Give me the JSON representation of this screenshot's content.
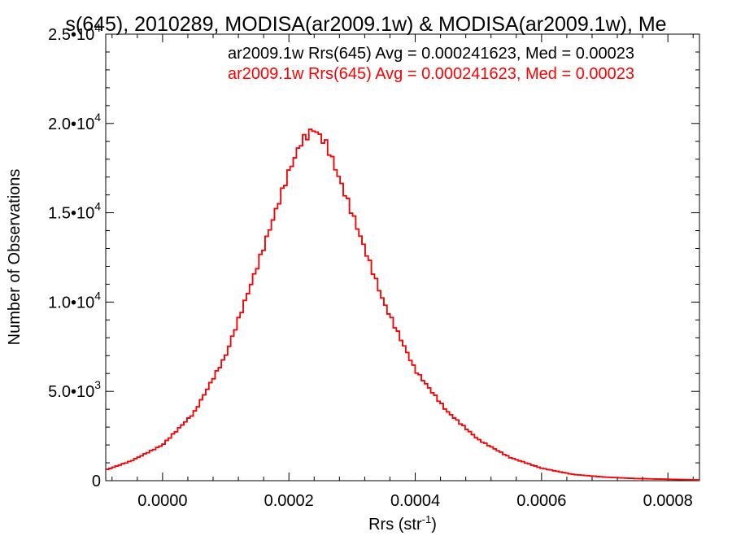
{
  "chart_data": {
    "type": "line",
    "title": "s(645), 2010289, MODISA(ar2009.1w) & MODISA(ar2009.1w), Me",
    "xlabel": "Rrs (str",
    "xlabel_sup": "-1",
    "xlabel_close": ")",
    "ylabel": "Number of Observations",
    "xlim": [
      -9e-05,
      0.00085
    ],
    "ylim": [
      0,
      25000
    ],
    "x_ticks": [
      {
        "value": 0.0,
        "label": "0.0000"
      },
      {
        "value": 0.0002,
        "label": "0.0002"
      },
      {
        "value": 0.0004,
        "label": "0.0004"
      },
      {
        "value": 0.0006,
        "label": "0.0006"
      },
      {
        "value": 0.0008,
        "label": "0.0008"
      }
    ],
    "y_ticks": [
      {
        "value": 0,
        "mant": "0",
        "exp": ""
      },
      {
        "value": 5000,
        "mant": "5.0•10",
        "exp": "3"
      },
      {
        "value": 10000,
        "mant": "1.0•10",
        "exp": "4"
      },
      {
        "value": 15000,
        "mant": "1.5•10",
        "exp": "4"
      },
      {
        "value": 20000,
        "mant": "2.0•10",
        "exp": "4"
      },
      {
        "value": 25000,
        "mant": "2.5•10",
        "exp": "4"
      }
    ],
    "histogram": {
      "mean": 0.000241623,
      "n_steps": 190
    },
    "series": [
      {
        "name": "ar2009.1w Rrs(645) Avg = 0.000241623, Med = 0.00023",
        "color": "#000000",
        "x": [
          -9e-05,
          -5e-05,
          0.0,
          5e-05,
          0.0001,
          0.00015,
          0.0002,
          0.00022,
          0.00024,
          0.00026,
          0.0003,
          0.00035,
          0.0004,
          0.00045,
          0.0005,
          0.00055,
          0.0006,
          0.00065,
          0.0007,
          0.00075,
          0.0008,
          0.00085
        ],
        "y": [
          600,
          1100,
          2000,
          3800,
          7000,
          12000,
          17300,
          19000,
          19700,
          18800,
          15000,
          10000,
          6200,
          3900,
          2300,
          1300,
          700,
          350,
          200,
          120,
          80,
          40
        ]
      },
      {
        "name": "ar2009.1w Rrs(645) Avg = 0.000241623, Med = 0.00023",
        "color": "#ff0000",
        "x": [
          -9e-05,
          -5e-05,
          0.0,
          5e-05,
          0.0001,
          0.00015,
          0.0002,
          0.00022,
          0.00024,
          0.00026,
          0.0003,
          0.00035,
          0.0004,
          0.00045,
          0.0005,
          0.00055,
          0.0006,
          0.00065,
          0.0007,
          0.00075,
          0.0008,
          0.00085
        ],
        "y": [
          600,
          1100,
          2000,
          3800,
          7000,
          12000,
          17300,
          19000,
          19700,
          18800,
          15000,
          10000,
          6200,
          3900,
          2300,
          1300,
          700,
          350,
          200,
          120,
          80,
          40
        ]
      }
    ],
    "legend_position": "top-right"
  }
}
